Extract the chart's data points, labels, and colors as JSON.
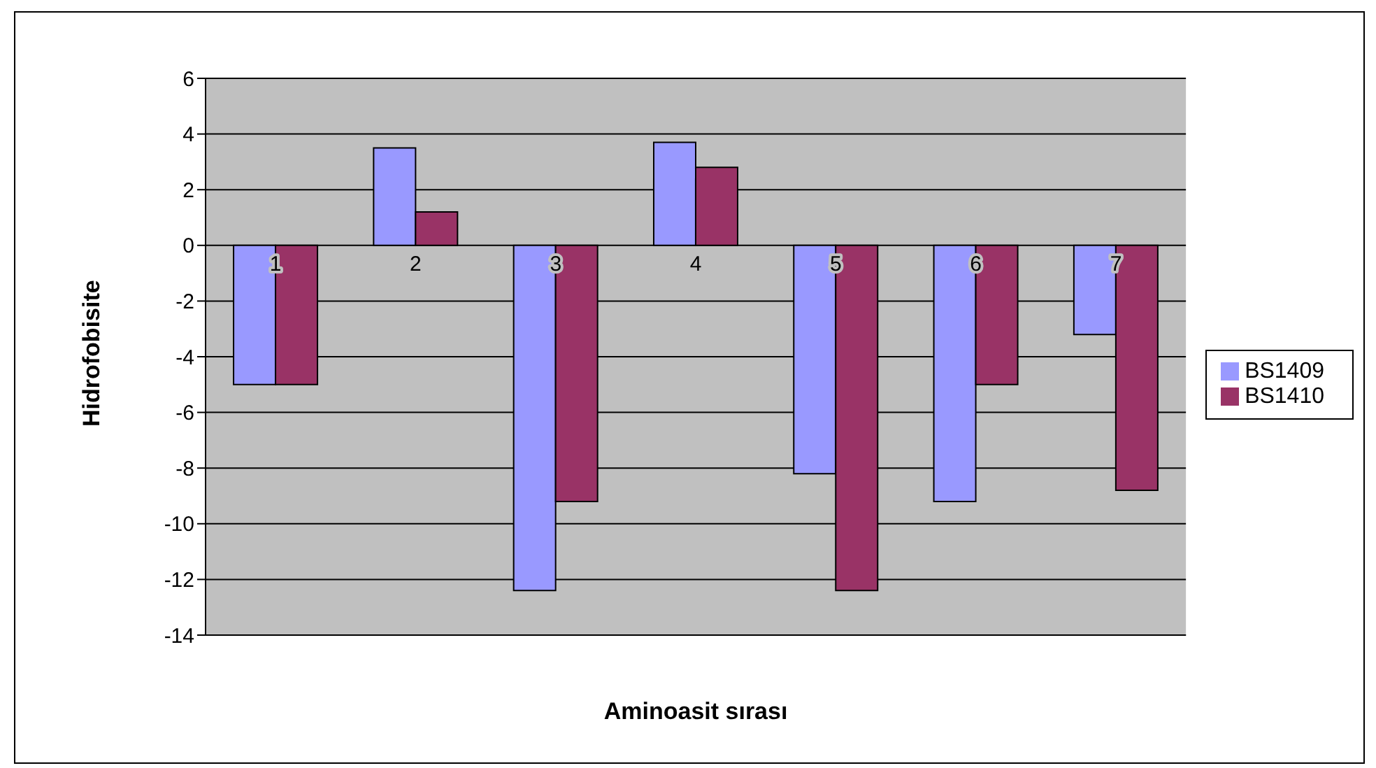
{
  "chart_data": {
    "type": "bar",
    "xlabel": "Aminoasit sırası",
    "ylabel": "Hidrofobisite",
    "categories": [
      "1",
      "2",
      "3",
      "4",
      "5",
      "6",
      "7"
    ],
    "series": [
      {
        "name": "BS1409",
        "color": "#9999ff",
        "values": [
          -5,
          3.5,
          -12.4,
          3.7,
          -8.2,
          -9.2,
          -3.2
        ]
      },
      {
        "name": "BS1410",
        "color": "#993366",
        "values": [
          -5,
          1.2,
          -9.2,
          2.8,
          -12.4,
          -5,
          -8.8
        ]
      }
    ],
    "ylim": [
      -14,
      6
    ],
    "yticks": [
      -14,
      -12,
      -10,
      -8,
      -6,
      -4,
      -2,
      0,
      2,
      4,
      6
    ],
    "grid": "y",
    "legend": "right"
  }
}
